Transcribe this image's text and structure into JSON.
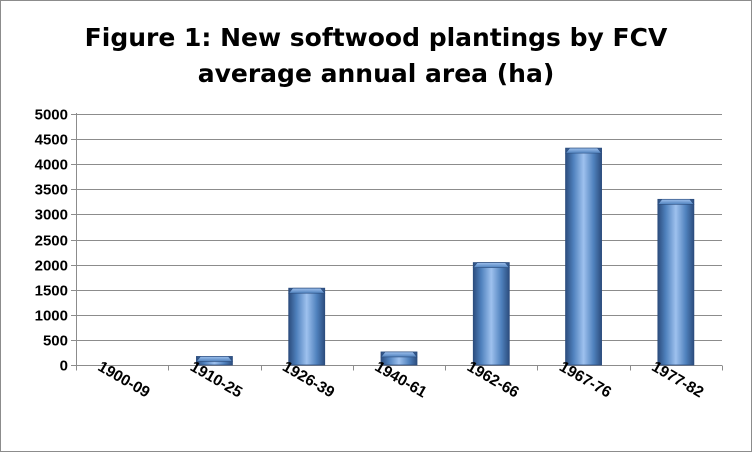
{
  "chart_data": {
    "type": "bar",
    "title_lines": [
      "Figure 1: New softwood plantings by FCV",
      "average annual area (ha)"
    ],
    "categories": [
      "1900-09",
      "1910-25",
      "1926-39",
      "1940-61",
      "1962-66",
      "1967-76",
      "1977-82"
    ],
    "values": [
      0,
      170,
      1530,
      260,
      2040,
      4320,
      3300
    ],
    "xlabel": "",
    "ylabel": "",
    "ylim": [
      0,
      5000
    ],
    "yticks": [
      0,
      500,
      1000,
      1500,
      2000,
      2500,
      3000,
      3500,
      4000,
      4500,
      5000
    ],
    "grid": true,
    "legend": "none",
    "bar_color": "#4f81bd",
    "bar_highlight": "#9ec1ee",
    "bar_shadow": "#2c4d7e"
  }
}
